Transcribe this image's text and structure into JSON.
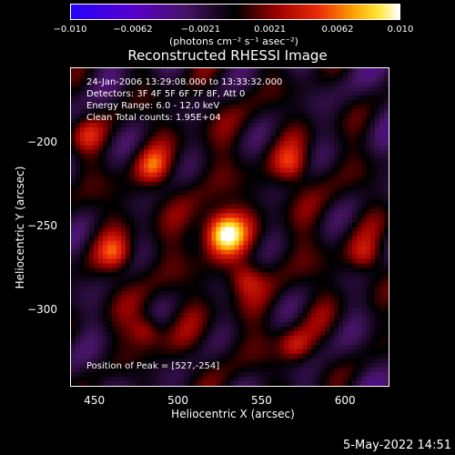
{
  "colorbar": {
    "ticks": [
      "−0.010",
      "−0.0062",
      "−0.0021",
      "0.0021",
      "0.0062",
      "0.010"
    ],
    "units_label": "(photons cm⁻² s⁻¹ asec⁻²)",
    "range": [
      -0.01,
      0.01
    ]
  },
  "chart_data": {
    "type": "heatmap",
    "title": "Reconstructed RHESSI Image",
    "xlabel": "Heliocentric X (arcsec)",
    "ylabel": "Heliocentric Y (arcsec)",
    "xlim": [
      436,
      626
    ],
    "ylim": [
      -346,
      -156
    ],
    "xticks": [
      450,
      500,
      550,
      600
    ],
    "yticks": [
      -200,
      -250,
      -300
    ],
    "peak": {
      "x": 527,
      "y": -254,
      "value": 0.01
    },
    "secondary_sources": [
      {
        "x": 463,
        "y": -267
      },
      {
        "x": 568,
        "y": -214
      },
      {
        "x": 612,
        "y": -268
      },
      {
        "x": 481,
        "y": -313
      },
      {
        "x": 570,
        "y": -322
      },
      {
        "x": 445,
        "y": -196
      },
      {
        "x": 485,
        "y": -215
      },
      {
        "x": 540,
        "y": -282
      }
    ],
    "annotations": [
      "24-Jan-2006 13:29:08.000 to 13:33:32.000",
      "Detectors: 3F 4F 5F 6F 7F 8F, Att 0",
      "Energy Range: 6.0 - 12.0 keV",
      "Clean     Total counts: 1.95E+04",
      "Position of Peak = [527,-254]"
    ]
  },
  "datestamp": "5-May-2022 14:51"
}
